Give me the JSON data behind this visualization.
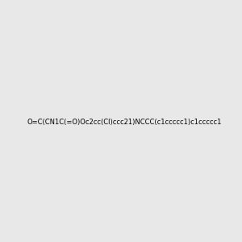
{
  "smiles": "O=C(CN1C(=O)Oc2cc(Cl)ccc21)NCCC(c1ccccc1)c1ccccc1",
  "image_size": 300,
  "background_color": "#e8e8e8",
  "title": ""
}
